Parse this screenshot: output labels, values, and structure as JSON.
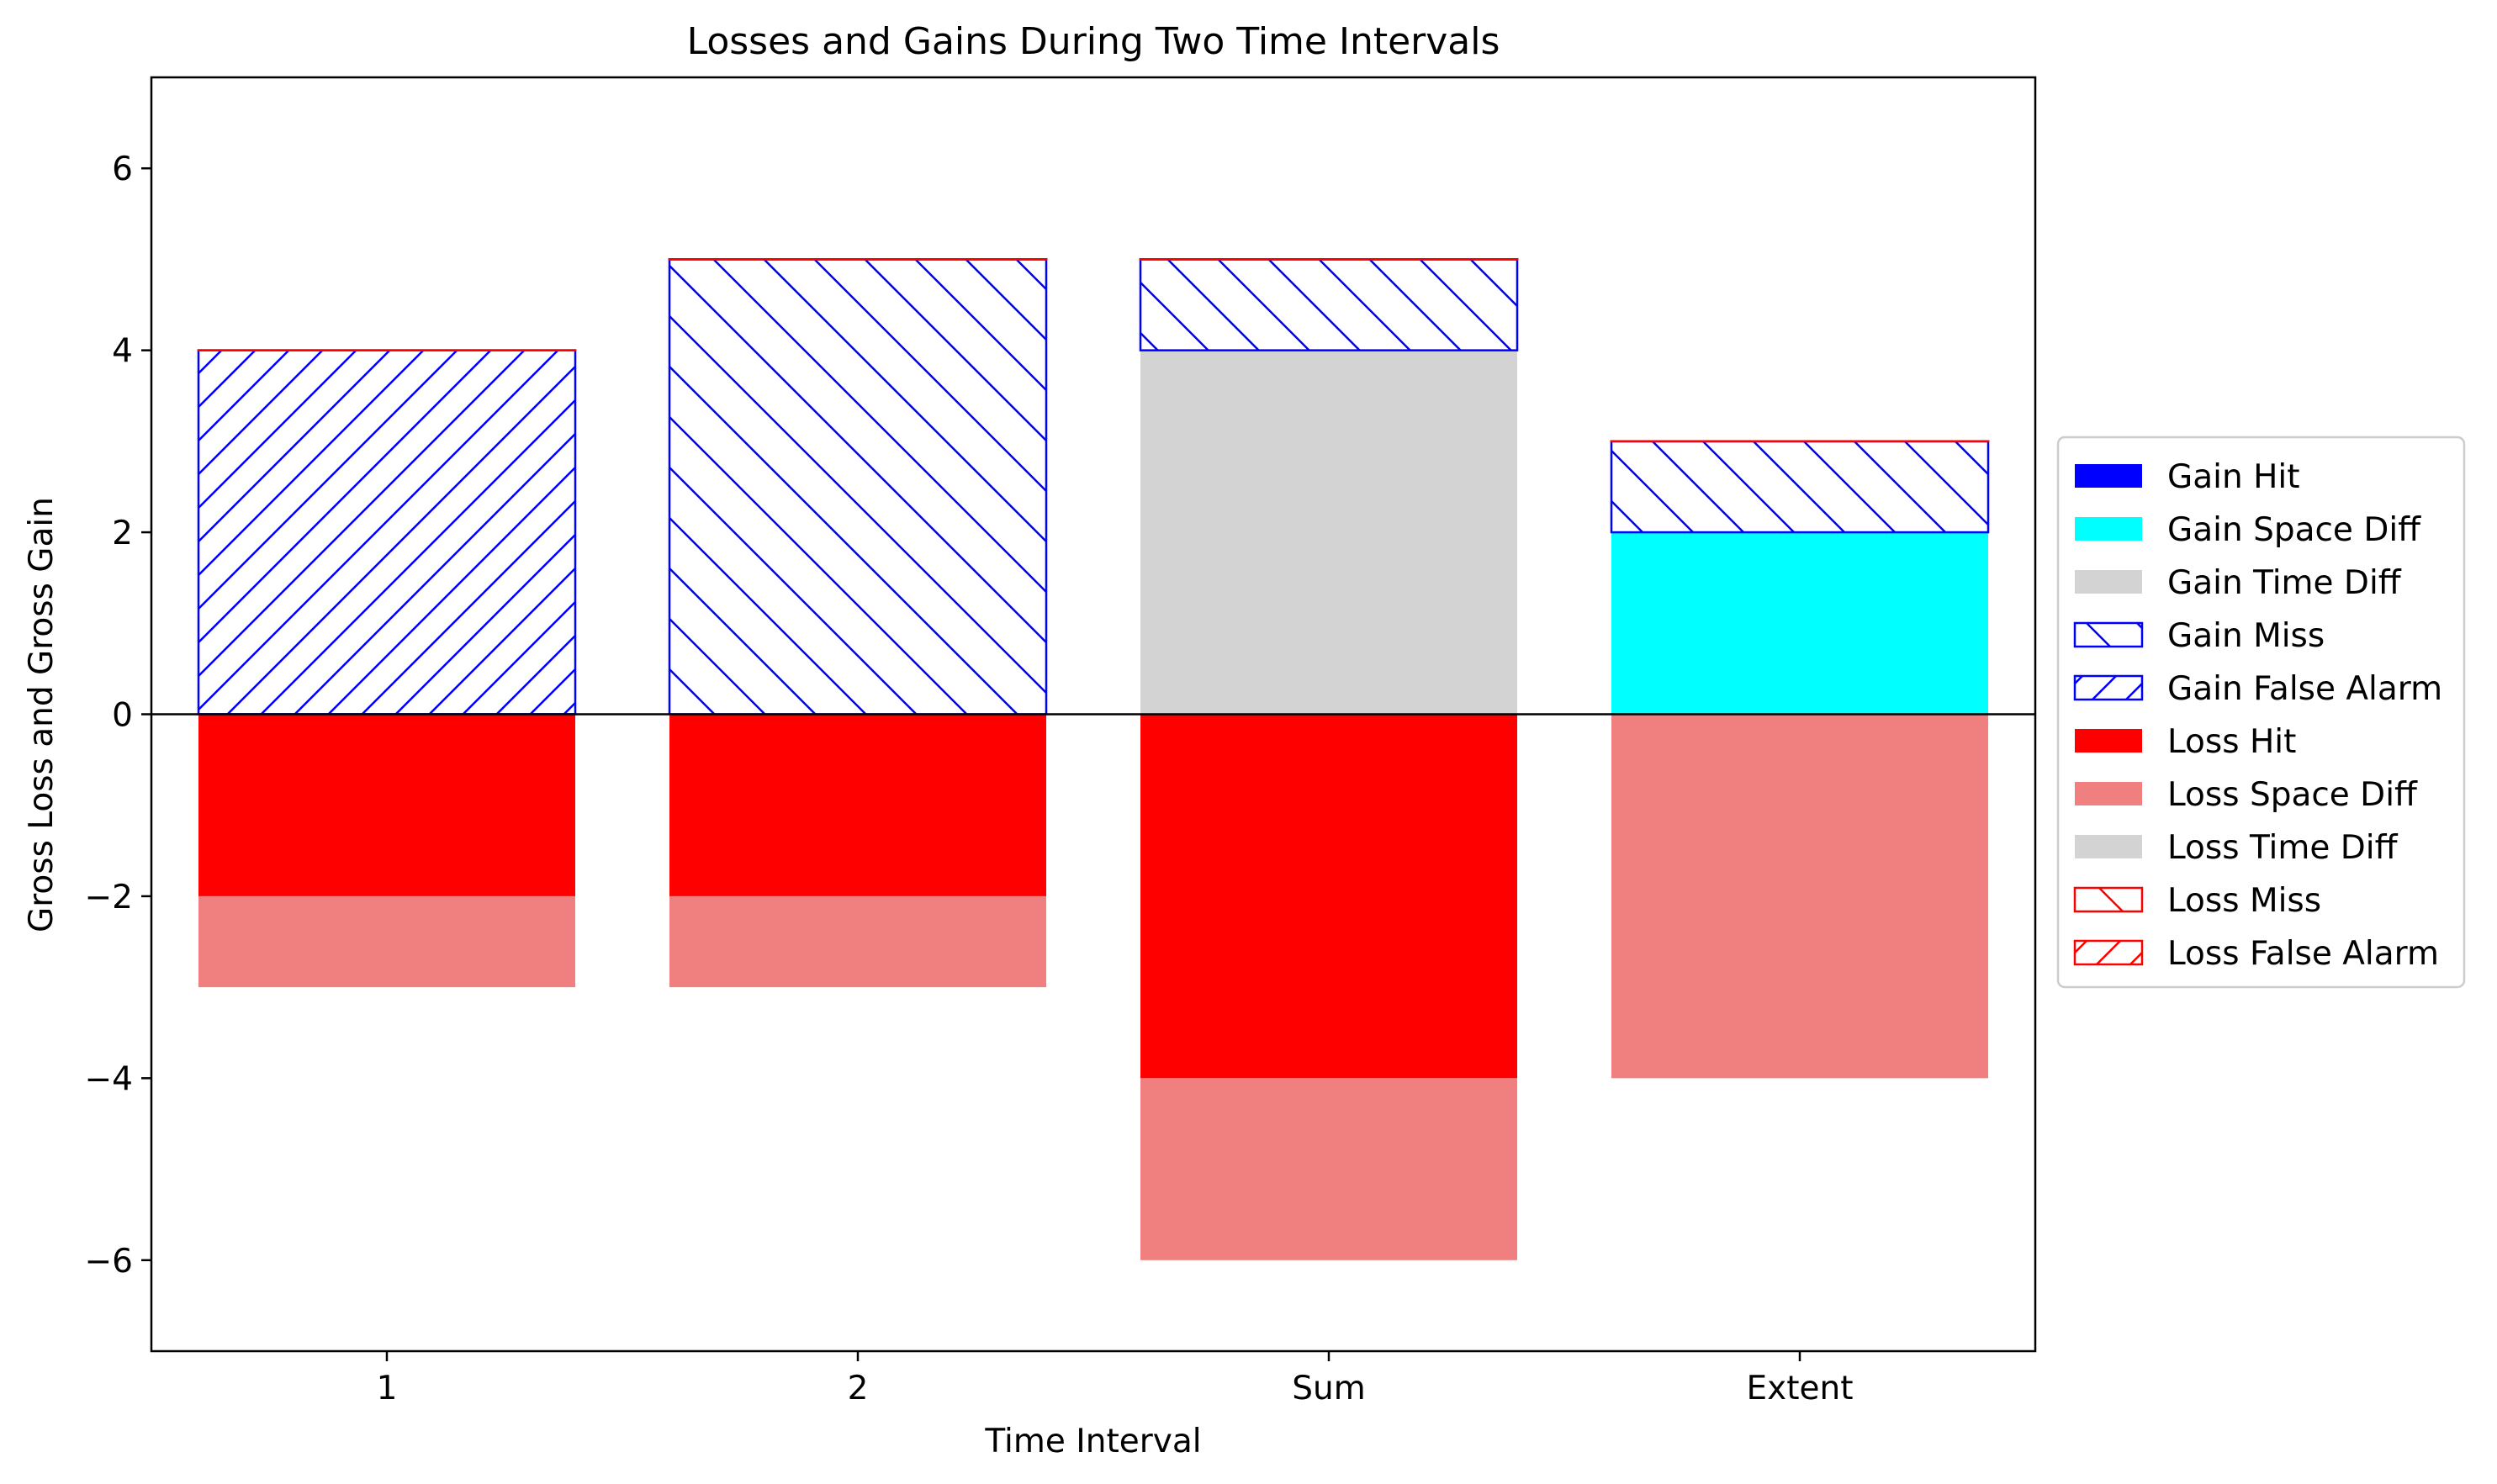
{
  "chart_data": {
    "type": "bar",
    "stacked": true,
    "title": "Losses and Gains During Two Time Intervals",
    "xlabel": "Time Interval",
    "ylabel": "Gross Loss and Gross Gain",
    "ylim": [
      -7,
      7
    ],
    "yticks": [
      -6,
      -4,
      -2,
      0,
      2,
      4,
      6
    ],
    "ytick_labels": [
      "−6",
      "−4",
      "−2",
      "0",
      "2",
      "4",
      "6"
    ],
    "categories": [
      "1",
      "2",
      "Sum",
      "Extent"
    ],
    "grid": false,
    "legend_position": "center-right",
    "series": [
      {
        "name": "Gain Hit",
        "values": [
          0,
          0,
          0,
          0
        ],
        "color": "#0000ff",
        "hatch": "none",
        "edge": "none"
      },
      {
        "name": "Gain Space Diff",
        "values": [
          0,
          0,
          0,
          2
        ],
        "color": "#00ffff",
        "hatch": "none",
        "edge": "none"
      },
      {
        "name": "Gain Time Diff",
        "values": [
          0,
          0,
          4,
          0
        ],
        "color": "#d3d3d3",
        "hatch": "none",
        "edge": "none"
      },
      {
        "name": "Gain Miss",
        "values": [
          0,
          5,
          1,
          1
        ],
        "color": "#0000ff",
        "hatch": "backslash",
        "edge": "#0000ff"
      },
      {
        "name": "Gain False Alarm",
        "values": [
          4,
          0,
          0,
          0
        ],
        "color": "#0000ff",
        "hatch": "slash",
        "edge": "#0000ff"
      },
      {
        "name": "Loss Hit",
        "values": [
          -2,
          -2,
          -4,
          0
        ],
        "color": "#ff0000",
        "hatch": "none",
        "edge": "none"
      },
      {
        "name": "Loss Space Diff",
        "values": [
          -1,
          -1,
          -2,
          -4
        ],
        "color": "#f08080",
        "hatch": "none",
        "edge": "none"
      },
      {
        "name": "Loss Time Diff",
        "values": [
          0,
          0,
          0,
          0
        ],
        "color": "#d3d3d3",
        "hatch": "none",
        "edge": "none"
      },
      {
        "name": "Loss Miss",
        "values": [
          0,
          0,
          0,
          0
        ],
        "color": "#ff0000",
        "hatch": "backslash",
        "edge": "#ff0000"
      },
      {
        "name": "Loss False Alarm",
        "values": [
          0,
          0,
          0,
          0
        ],
        "color": "#ff0000",
        "hatch": "slash",
        "edge": "#ff0000"
      }
    ]
  }
}
